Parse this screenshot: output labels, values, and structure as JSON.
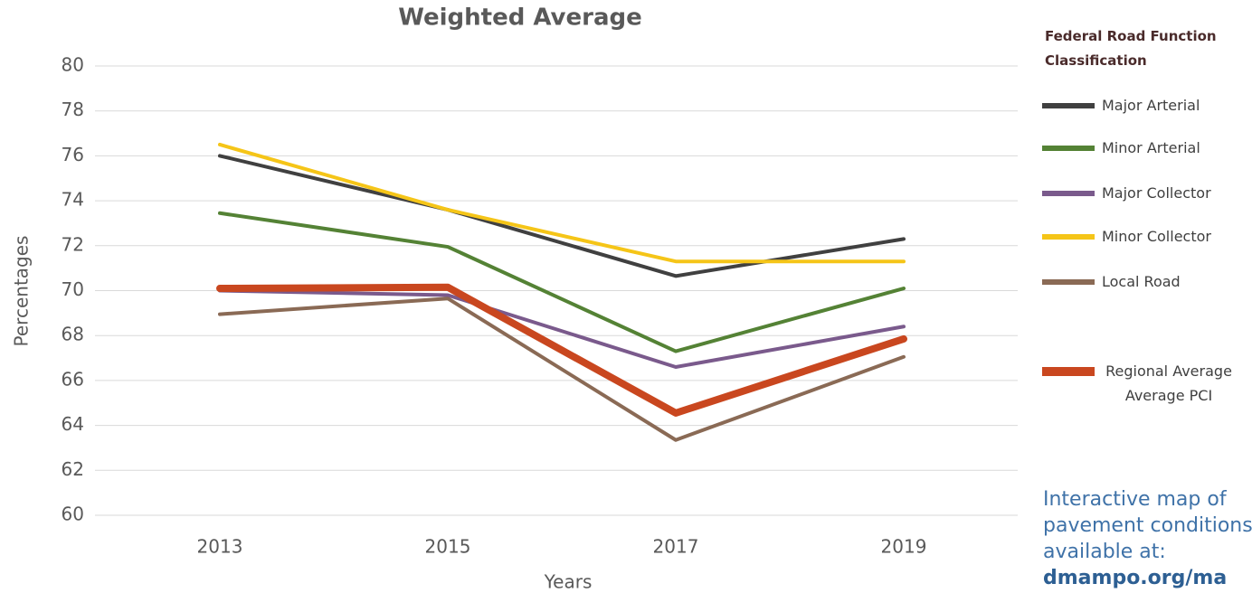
{
  "chart_data": {
    "type": "line",
    "title": "Weighted Average",
    "x_label": "Years",
    "y_label": "Percentages",
    "legend_title": "Federal Road Function Classification",
    "categories": [
      "2013",
      "2015",
      "2017",
      "2019"
    ],
    "ylim": [
      60,
      80
    ],
    "yticks": [
      60,
      62,
      64,
      66,
      68,
      70,
      72,
      74,
      76,
      78,
      80
    ],
    "grid": true,
    "legend_position": "right",
    "series": [
      {
        "name": "Major Arterial",
        "color": "#404040",
        "values": [
          76.0,
          73.6,
          70.65,
          72.3
        ]
      },
      {
        "name": "Minor Arterial",
        "color": "#548235",
        "values": [
          73.45,
          71.95,
          67.3,
          70.1
        ]
      },
      {
        "name": "Major Collector",
        "color": "#7a5a8c",
        "values": [
          70.0,
          69.8,
          66.6,
          68.4
        ]
      },
      {
        "name": "Minor Collector",
        "color": "#f5c518",
        "values": [
          76.5,
          73.6,
          71.3,
          71.3
        ]
      },
      {
        "name": "Local Road",
        "color": "#8a6a55",
        "values": [
          68.95,
          69.65,
          63.35,
          67.05
        ]
      },
      {
        "name": "Regional Average Average PCI",
        "color": "#c9471f",
        "values": [
          70.1,
          70.15,
          64.55,
          67.85
        ]
      }
    ],
    "annotation": "Interactive map of pavement conditions is available at:",
    "annotation_link": "dmampo.org/ma"
  }
}
